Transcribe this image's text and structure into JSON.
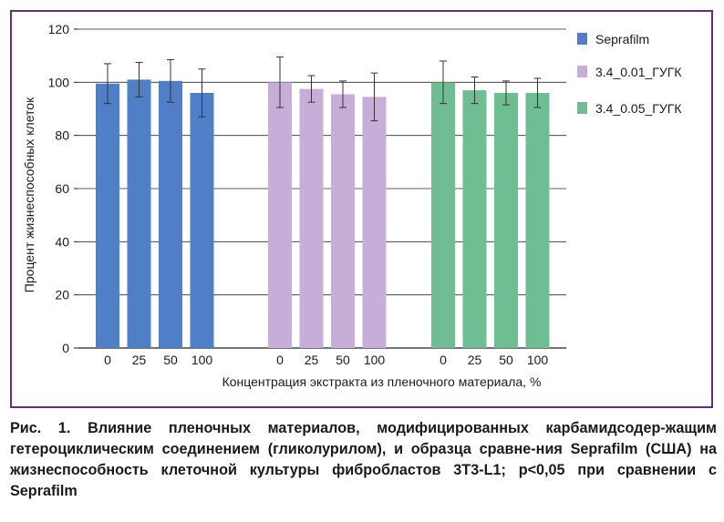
{
  "chart_data": {
    "type": "bar",
    "title": "",
    "xlabel": "Концентрация экстракта из пленочного материала, %",
    "ylabel": "Процент жизнеспособных клеток",
    "ylim": [
      0,
      120
    ],
    "yticks": [
      0,
      20,
      40,
      60,
      80,
      100,
      120
    ],
    "grid": true,
    "legend_position": "right",
    "groups": [
      {
        "name": "Seprafilm",
        "color": "#4f7fc7",
        "categories": [
          "0",
          "25",
          "50",
          "100"
        ],
        "values": [
          99.5,
          101,
          100.5,
          96
        ],
        "errors": [
          7.5,
          6.5,
          8,
          9
        ]
      },
      {
        "name": "3.4_0.01_ГУГК",
        "color": "#c7aed9",
        "categories": [
          "0",
          "25",
          "50",
          "100"
        ],
        "values": [
          100,
          97.5,
          95.5,
          94.5
        ],
        "errors": [
          9.5,
          5,
          5,
          9
        ]
      },
      {
        "name": "3.4_0.05_ГУГК",
        "color": "#6fbe93",
        "categories": [
          "0",
          "25",
          "50",
          "100"
        ],
        "values": [
          100,
          97,
          96,
          96
        ],
        "errors": [
          8,
          5,
          4.5,
          5.5
        ]
      }
    ]
  },
  "caption": "Рис. 1. Влияние пленочных материалов, модифицированных карбамидсодер-жащим гетероциклическим соединением (гликолурилом), и образца сравне-ния Seprafilm (США) на жизнеспособность клеточной культуры фибробластов 3Т3-L1; p<0,05 при сравнении с Seprafilm"
}
